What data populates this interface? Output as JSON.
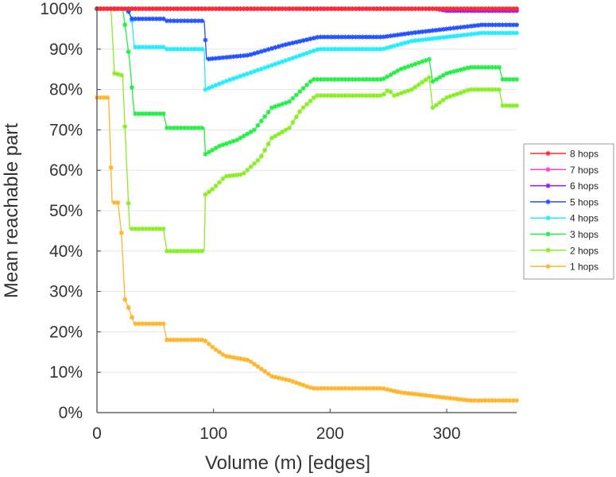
{
  "chart_data": {
    "type": "line",
    "title": "",
    "xlabel": "Volume (m) [edges]",
    "ylabel": "Mean reachable part",
    "xlim": [
      0,
      360
    ],
    "ylim": [
      0,
      100
    ],
    "xticks": [
      0,
      100,
      200,
      300
    ],
    "yticks": [
      0,
      10,
      20,
      30,
      40,
      50,
      60,
      70,
      80,
      90,
      100
    ],
    "ytick_labels": [
      "0%",
      "10%",
      "20%",
      "30%",
      "40%",
      "50%",
      "60%",
      "70%",
      "80%",
      "90%",
      "100%"
    ],
    "grid": "horizontal",
    "legend_position": "right",
    "series": [
      {
        "name": "8 hops",
        "color": "#ff2a2a",
        "points": [
          [
            0,
            100
          ],
          [
            360,
            100
          ]
        ]
      },
      {
        "name": "7 hops",
        "color": "#ff40c8",
        "points": [
          [
            0,
            100
          ],
          [
            330,
            100
          ],
          [
            360,
            100
          ]
        ]
      },
      {
        "name": "6 hops",
        "color": "#8a1cff",
        "points": [
          [
            0,
            100
          ],
          [
            290,
            100
          ],
          [
            300,
            99.5
          ],
          [
            360,
            99.5
          ]
        ]
      },
      {
        "name": "5 hops",
        "color": "#2050ff",
        "points": [
          [
            0,
            100
          ],
          [
            26,
            100
          ],
          [
            30,
            97.5
          ],
          [
            57,
            97.5
          ],
          [
            60,
            97
          ],
          [
            92,
            97
          ],
          [
            94,
            87.5
          ],
          [
            130,
            88.5
          ],
          [
            160,
            91
          ],
          [
            190,
            93
          ],
          [
            245,
            93
          ],
          [
            270,
            94
          ],
          [
            300,
            95
          ],
          [
            330,
            96
          ],
          [
            360,
            96
          ]
        ]
      },
      {
        "name": "4 hops",
        "color": "#20ecff",
        "points": [
          [
            0,
            100
          ],
          [
            26,
            100
          ],
          [
            30,
            97
          ],
          [
            32,
            90.5
          ],
          [
            57,
            90.5
          ],
          [
            60,
            90
          ],
          [
            92,
            90
          ],
          [
            93,
            80
          ],
          [
            110,
            82
          ],
          [
            130,
            84
          ],
          [
            150,
            86
          ],
          [
            170,
            88
          ],
          [
            190,
            90
          ],
          [
            245,
            90
          ],
          [
            270,
            92
          ],
          [
            300,
            93
          ],
          [
            330,
            94
          ],
          [
            360,
            94
          ]
        ]
      },
      {
        "name": "3 hops",
        "color": "#22ee44",
        "points": [
          [
            0,
            100
          ],
          [
            22,
            100
          ],
          [
            25,
            94
          ],
          [
            28,
            87
          ],
          [
            32,
            74
          ],
          [
            57,
            74
          ],
          [
            60,
            70.5
          ],
          [
            92,
            70.5
          ],
          [
            93,
            64
          ],
          [
            105,
            66
          ],
          [
            120,
            67.5
          ],
          [
            135,
            70
          ],
          [
            150,
            75.5
          ],
          [
            165,
            77
          ],
          [
            185,
            82.5
          ],
          [
            245,
            82.5
          ],
          [
            260,
            85
          ],
          [
            285,
            87.5
          ],
          [
            288,
            82
          ],
          [
            300,
            84
          ],
          [
            320,
            85.5
          ],
          [
            345,
            85.5
          ],
          [
            348,
            82.5
          ],
          [
            360,
            82.5
          ]
        ]
      },
      {
        "name": "2 hops",
        "color": "#88ee22",
        "points": [
          [
            0,
            100
          ],
          [
            12,
            100
          ],
          [
            15,
            84
          ],
          [
            22,
            83.5
          ],
          [
            28,
            45.5
          ],
          [
            57,
            45.5
          ],
          [
            60,
            40
          ],
          [
            92,
            40
          ],
          [
            93,
            54
          ],
          [
            100,
            55.5
          ],
          [
            110,
            58.5
          ],
          [
            125,
            59
          ],
          [
            140,
            63
          ],
          [
            150,
            68
          ],
          [
            165,
            70.5
          ],
          [
            175,
            75
          ],
          [
            188,
            78.5
          ],
          [
            245,
            78.5
          ],
          [
            250,
            80
          ],
          [
            255,
            78.5
          ],
          [
            270,
            80
          ],
          [
            285,
            83
          ],
          [
            288,
            75.5
          ],
          [
            300,
            78
          ],
          [
            320,
            80
          ],
          [
            345,
            80
          ],
          [
            348,
            76
          ],
          [
            360,
            76
          ]
        ]
      },
      {
        "name": "1 hops",
        "color": "#ffb42a",
        "points": [
          [
            0,
            78
          ],
          [
            10,
            78
          ],
          [
            13,
            52
          ],
          [
            18,
            52
          ],
          [
            21,
            44.5
          ],
          [
            24,
            28
          ],
          [
            27,
            26
          ],
          [
            32,
            22
          ],
          [
            57,
            22
          ],
          [
            60,
            18
          ],
          [
            92,
            18
          ],
          [
            100,
            16
          ],
          [
            110,
            14
          ],
          [
            130,
            13
          ],
          [
            140,
            11
          ],
          [
            150,
            9
          ],
          [
            165,
            8
          ],
          [
            185,
            6
          ],
          [
            245,
            6
          ],
          [
            260,
            5
          ],
          [
            290,
            4
          ],
          [
            320,
            3
          ],
          [
            360,
            3
          ]
        ]
      }
    ]
  }
}
